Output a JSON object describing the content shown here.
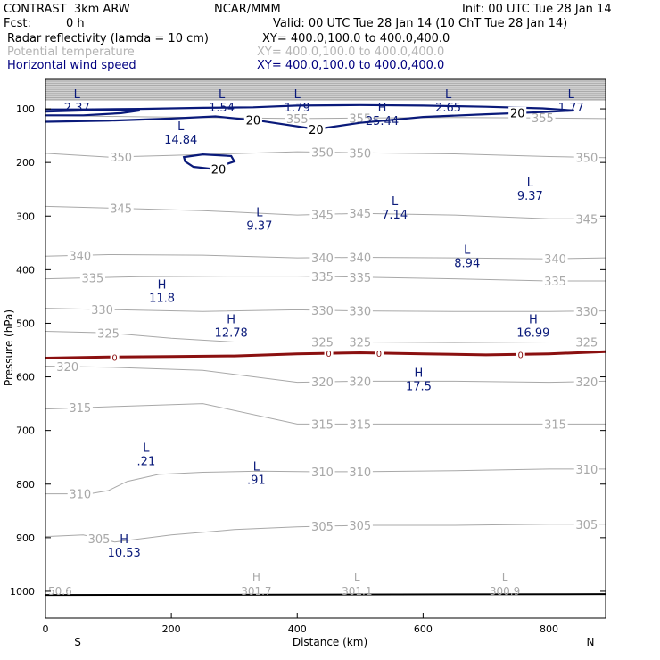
{
  "header": {
    "model": "CONTRAST  3km ARW",
    "org": "NCAR/MMM",
    "init": "Init: 00 UTC Tue 28 Jan 14",
    "fcst_label": "Fcst:",
    "fcst_value": "0 h",
    "valid": "Valid: 00 UTC Tue 28 Jan 14 (10 ChT Tue 28 Jan 14)"
  },
  "fields": [
    {
      "name": "Radar reflectivity (lamda = 10 cm)",
      "xy": "XY= 400.0,100.0 to 400.0,400.0",
      "color": "#000000"
    },
    {
      "name": "Potential temperature",
      "xy": "XY= 400.0,100.0 to 400.0,400.0",
      "color": "#b4b4b4"
    },
    {
      "name": "Horizontal wind speed",
      "xy": "XY= 400.0,100.0 to 400.0,400.0",
      "color": "#000080"
    }
  ],
  "colors": {
    "theta": "#a8a8a8",
    "wind": "#0a1a7a",
    "zero": "#8b1010",
    "axis": "#000000"
  },
  "chart_data": {
    "type": "line",
    "xlabel": "Distance (km)",
    "ylabel": "Pressure (hPa)",
    "xlim": [
      0,
      890
    ],
    "ylim": [
      1050,
      45
    ],
    "x_ticks": [
      "0",
      "200",
      "400",
      "600",
      "800"
    ],
    "x_tick_values": [
      0,
      200,
      400,
      600,
      800
    ],
    "y_ticks": [
      "100",
      "200",
      "300",
      "400",
      "500",
      "600",
      "700",
      "800",
      "900",
      "1000"
    ],
    "y_tick_values": [
      100,
      200,
      300,
      400,
      500,
      600,
      700,
      800,
      900,
      1000
    ],
    "x_end_labels": {
      "left": "S",
      "right": "N"
    },
    "theta_contours": [
      {
        "label": "355",
        "points": [
          [
            0,
            112
          ],
          [
            100,
            114
          ],
          [
            250,
            116
          ],
          [
            400,
            118
          ],
          [
            500,
            117
          ],
          [
            650,
            116
          ],
          [
            800,
            117
          ],
          [
            890,
            118
          ]
        ],
        "label_x": [
          400,
          500,
          790
        ]
      },
      {
        "label": "350",
        "points": [
          [
            0,
            183
          ],
          [
            100,
            190
          ],
          [
            200,
            187
          ],
          [
            400,
            180
          ],
          [
            500,
            182
          ],
          [
            650,
            184
          ],
          [
            800,
            189
          ],
          [
            890,
            191
          ]
        ],
        "label_x": [
          120,
          440,
          500,
          860
        ]
      },
      {
        "label": "345",
        "points": [
          [
            0,
            282
          ],
          [
            100,
            285
          ],
          [
            250,
            290
          ],
          [
            400,
            298
          ],
          [
            500,
            295
          ],
          [
            650,
            298
          ],
          [
            800,
            305
          ],
          [
            890,
            305
          ]
        ],
        "label_x": [
          120,
          440,
          500,
          860
        ]
      },
      {
        "label": "340",
        "points": [
          [
            0,
            375
          ],
          [
            100,
            372
          ],
          [
            250,
            373
          ],
          [
            400,
            378
          ],
          [
            500,
            377
          ],
          [
            650,
            378
          ],
          [
            800,
            380
          ],
          [
            890,
            378
          ]
        ],
        "label_x": [
          55,
          440,
          500,
          810
        ]
      },
      {
        "label": "335",
        "points": [
          [
            0,
            417
          ],
          [
            150,
            413
          ],
          [
            300,
            412
          ],
          [
            400,
            412
          ],
          [
            500,
            414
          ],
          [
            650,
            417
          ],
          [
            800,
            421
          ],
          [
            890,
            421
          ]
        ],
        "label_x": [
          75,
          440,
          500,
          810
        ]
      },
      {
        "label": "330",
        "points": [
          [
            0,
            472
          ],
          [
            120,
            475
          ],
          [
            250,
            478
          ],
          [
            400,
            475
          ],
          [
            500,
            477
          ],
          [
            650,
            478
          ],
          [
            800,
            478
          ],
          [
            890,
            477
          ]
        ],
        "label_x": [
          90,
          440,
          500,
          860
        ]
      },
      {
        "label": "325",
        "points": [
          [
            0,
            515
          ],
          [
            100,
            518
          ],
          [
            200,
            528
          ],
          [
            300,
            535
          ],
          [
            400,
            535
          ],
          [
            500,
            535
          ],
          [
            650,
            536
          ],
          [
            800,
            535
          ],
          [
            890,
            535
          ]
        ],
        "label_x": [
          100,
          440,
          500,
          860
        ]
      },
      {
        "label": "320",
        "points": [
          [
            0,
            580
          ],
          [
            100,
            582
          ],
          [
            250,
            588
          ],
          [
            400,
            610
          ],
          [
            500,
            608
          ],
          [
            650,
            608
          ],
          [
            800,
            610
          ],
          [
            890,
            608
          ]
        ],
        "label_x": [
          35,
          440,
          500,
          860
        ]
      },
      {
        "label": "315",
        "points": [
          [
            0,
            660
          ],
          [
            120,
            655
          ],
          [
            250,
            650
          ],
          [
            400,
            688
          ],
          [
            500,
            688
          ],
          [
            650,
            688
          ],
          [
            800,
            688
          ],
          [
            890,
            688
          ]
        ],
        "label_x": [
          55,
          440,
          500,
          810
        ]
      },
      {
        "label": "310",
        "points": [
          [
            0,
            818
          ],
          [
            70,
            818
          ],
          [
            100,
            812
          ],
          [
            130,
            795
          ],
          [
            180,
            782
          ],
          [
            250,
            778
          ],
          [
            340,
            776
          ],
          [
            420,
            777
          ],
          [
            500,
            777
          ],
          [
            650,
            775
          ],
          [
            800,
            772
          ],
          [
            890,
            772
          ]
        ],
        "label_x": [
          55,
          440,
          500,
          860
        ]
      },
      {
        "label": "305",
        "points": [
          [
            0,
            898
          ],
          [
            60,
            895
          ],
          [
            110,
            908
          ],
          [
            200,
            895
          ],
          [
            300,
            885
          ],
          [
            400,
            880
          ],
          [
            500,
            877
          ],
          [
            650,
            877
          ],
          [
            800,
            875
          ],
          [
            890,
            875
          ]
        ],
        "label_x": [
          85,
          440,
          500,
          860
        ]
      }
    ],
    "wind_contours": [
      {
        "label": "20",
        "closed": false,
        "points": [
          [
            0,
            105
          ],
          [
            60,
            103
          ],
          [
            120,
            102
          ],
          [
            150,
            103
          ],
          [
            120,
            108
          ],
          [
            60,
            112
          ],
          [
            0,
            112
          ]
        ]
      },
      {
        "label": "20",
        "closed": false,
        "points": [
          [
            0,
            124
          ],
          [
            100,
            122
          ],
          [
            200,
            118
          ],
          [
            270,
            114
          ],
          [
            340,
            122
          ],
          [
            430,
            138
          ],
          [
            500,
            126
          ],
          [
            600,
            115
          ],
          [
            700,
            110
          ],
          [
            790,
            106
          ],
          [
            840,
            103
          ],
          [
            790,
            99
          ],
          [
            700,
            96
          ],
          [
            600,
            94
          ],
          [
            500,
            93
          ],
          [
            400,
            94
          ],
          [
            330,
            97
          ],
          [
            250,
            98
          ],
          [
            150,
            100
          ],
          [
            60,
            101
          ],
          [
            0,
            101
          ]
        ],
        "label_x": [
          330,
          430,
          750
        ]
      },
      {
        "label": "20",
        "closed": true,
        "points": [
          [
            220,
            190
          ],
          [
            250,
            185
          ],
          [
            295,
            188
          ],
          [
            300,
            198
          ],
          [
            265,
            212
          ],
          [
            235,
            208
          ],
          [
            222,
            198
          ]
        ],
        "label_x": [
          275
        ]
      }
    ],
    "zero_contour": {
      "label": "0",
      "points": [
        [
          0,
          565
        ],
        [
          100,
          563
        ],
        [
          200,
          562
        ],
        [
          300,
          561
        ],
        [
          400,
          557
        ],
        [
          500,
          555
        ],
        [
          600,
          557
        ],
        [
          700,
          559
        ],
        [
          800,
          557
        ],
        [
          890,
          553
        ]
      ],
      "label_x": [
        110,
        450,
        530,
        755
      ]
    },
    "ground_level": 1007,
    "theta_extrema": [
      {
        "type": "H",
        "value": "301.7",
        "x": 335,
        "p": 1000
      },
      {
        "type": "L",
        "value": "301.1",
        "x": 495,
        "p": 1000
      },
      {
        "type": "L",
        "value": "300.9",
        "x": 730,
        "p": 1000
      },
      {
        "type": "",
        "value": "50.6",
        "x": 0,
        "p": 1000
      }
    ],
    "wind_extrema": [
      {
        "type": "L",
        "value": "2.37",
        "x": 50,
        "p": 80
      },
      {
        "type": "L",
        "value": "1.54",
        "x": 280,
        "p": 80
      },
      {
        "type": "L",
        "value": "1.79",
        "x": 400,
        "p": 80
      },
      {
        "type": "L",
        "value": "2.65",
        "x": 640,
        "p": 80
      },
      {
        "type": "L",
        "value": "1.77",
        "x": 835,
        "p": 80
      },
      {
        "type": "H",
        "value": "25.44",
        "x": 535,
        "p": 105
      },
      {
        "type": "L",
        "value": "14.84",
        "x": 215,
        "p": 140
      },
      {
        "type": "L",
        "value": "9.37",
        "x": 770,
        "p": 245
      },
      {
        "type": "L",
        "value": "7.14",
        "x": 555,
        "p": 280
      },
      {
        "type": "L",
        "value": "9.37",
        "x": 340,
        "p": 300
      },
      {
        "type": "L",
        "value": "8.94",
        "x": 670,
        "p": 370
      },
      {
        "type": "H",
        "value": "11.8",
        "x": 185,
        "p": 435
      },
      {
        "type": "H",
        "value": "12.78",
        "x": 295,
        "p": 500
      },
      {
        "type": "H",
        "value": "16.99",
        "x": 775,
        "p": 500
      },
      {
        "type": "H",
        "value": "17.5",
        "x": 593,
        "p": 600
      },
      {
        "type": "L",
        "value": ".21",
        "x": 160,
        "p": 740
      },
      {
        "type": "L",
        "value": ".91",
        "x": 335,
        "p": 775
      },
      {
        "type": "H",
        "value": "10.53",
        "x": 125,
        "p": 910
      }
    ]
  }
}
